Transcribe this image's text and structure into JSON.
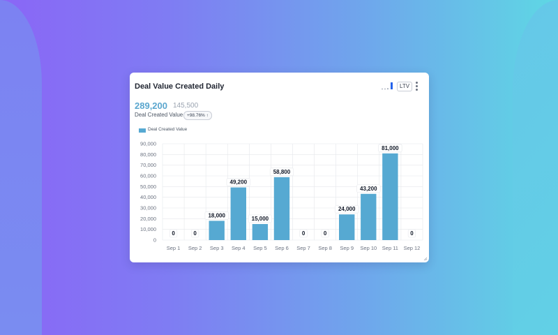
{
  "card": {
    "title": "Deal Value Created Daily",
    "ltv_label": "LTV",
    "primary_value": "289,200",
    "secondary_value": "145,500",
    "metric_label": "Deal Created Value",
    "change_badge": "+98.76% ↑"
  },
  "icons": {
    "mini_chart": "bar-chart-icon",
    "menu": "kebab-menu-icon",
    "resize": "resize-handle-icon"
  },
  "colors": {
    "bar": "#56a9d2",
    "primary_value": "#5aa6ce",
    "mini_bar_accent": "#2563eb"
  },
  "chart_data": {
    "type": "bar",
    "categories": [
      "Sep 1",
      "Sep 2",
      "Sep 3",
      "Sep 4",
      "Sep 5",
      "Sep 6",
      "Sep 7",
      "Sep 8",
      "Sep 9",
      "Sep 10",
      "Sep 11",
      "Sep 12"
    ],
    "series": [
      {
        "name": "Deal Created Value",
        "values": [
          0,
          0,
          18000,
          49200,
          15000,
          58800,
          0,
          0,
          24000,
          43200,
          81000,
          0
        ]
      }
    ],
    "data_labels": [
      "0",
      "0",
      "18,000",
      "49,200",
      "15,000",
      "58,800",
      "0",
      "0",
      "24,000",
      "43,200",
      "81,000",
      "0"
    ],
    "y_ticks": [
      "0",
      "10,000",
      "20,000",
      "30,000",
      "40,000",
      "50,000",
      "60,000",
      "70,000",
      "80,000",
      "90,000"
    ],
    "ylim": [
      0,
      90000
    ],
    "grid": true,
    "legend_position": "top-left"
  }
}
